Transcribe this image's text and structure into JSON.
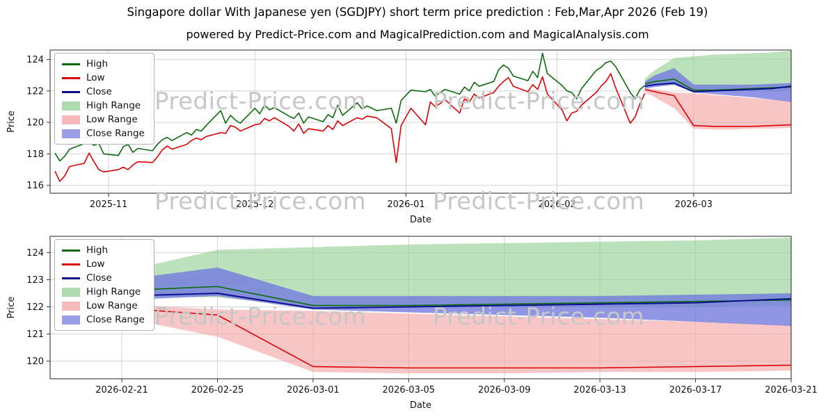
{
  "page": {
    "title": "Singapore dollar With Japanese yen (SGDJPY) short term price prediction : Feb,Mar,Apr 2026 (Feb 19)",
    "subtitle": "powered by Predict-Price.com and MagicalPrediction.com and MagicalAnalysis.com"
  },
  "watermark": "Predict-Price.com",
  "axes": {
    "x_label": "Date",
    "y_label": "Price"
  },
  "legend": {
    "items": [
      {
        "label": "High"
      },
      {
        "label": "Low"
      },
      {
        "label": "Close"
      },
      {
        "label": "High Range"
      },
      {
        "label": "Low Range"
      },
      {
        "label": "Close Range"
      }
    ]
  },
  "colors": {
    "high_line": "#0a6b0a",
    "low_line": "#dd0000",
    "close_line": "#0b0b8f",
    "high_range": "#8fce8f",
    "low_range": "#f4a0a0",
    "close_range": "#7179de",
    "grid": "#d2d2d2",
    "watermark": "#c7c7c7"
  },
  "chart_data": [
    {
      "name": "historical-and-forecast",
      "type": "line",
      "title": "Singapore dollar With Japanese yen (SGDJPY) short term price prediction : Feb,Mar,Apr 2026 (Feb 19)",
      "subtitle": "powered by Predict-Price.com and MagicalPrediction.com and MagicalAnalysis.com",
      "xlabel": "Date",
      "ylabel": "Price",
      "grid": true,
      "legend_position": "upper left",
      "ylim": [
        115.5,
        124.6
      ],
      "yticks": [
        116,
        118,
        120,
        122,
        124
      ],
      "x_range": [
        "2025-10-20",
        "2026-03-21"
      ],
      "xticks": [
        {
          "date": "2025-11-01",
          "label": "2025-11"
        },
        {
          "date": "2025-12-01",
          "label": "2025-12"
        },
        {
          "date": "2026-01-01",
          "label": "2026-01"
        },
        {
          "date": "2026-02-01",
          "label": "2026-02"
        },
        {
          "date": "2026-03-01",
          "label": "2026-03"
        }
      ],
      "historical": {
        "dates": [
          "2025-10-21",
          "2025-10-22",
          "2025-10-23",
          "2025-10-24",
          "2025-10-27",
          "2025-10-28",
          "2025-10-29",
          "2025-10-30",
          "2025-10-31",
          "2025-11-03",
          "2025-11-04",
          "2025-11-05",
          "2025-11-06",
          "2025-11-07",
          "2025-11-10",
          "2025-11-11",
          "2025-11-12",
          "2025-11-13",
          "2025-11-14",
          "2025-11-17",
          "2025-11-18",
          "2025-11-19",
          "2025-11-20",
          "2025-11-21",
          "2025-11-24",
          "2025-11-25",
          "2025-11-26",
          "2025-11-27",
          "2025-11-28",
          "2025-12-01",
          "2025-12-02",
          "2025-12-03",
          "2025-12-04",
          "2025-12-05",
          "2025-12-08",
          "2025-12-09",
          "2025-12-10",
          "2025-12-11",
          "2025-12-12",
          "2025-12-15",
          "2025-12-16",
          "2025-12-17",
          "2025-12-18",
          "2025-12-19",
          "2025-12-22",
          "2025-12-23",
          "2025-12-24",
          "2025-12-26",
          "2025-12-29",
          "2025-12-30",
          "2025-12-31",
          "2026-01-02",
          "2026-01-05",
          "2026-01-06",
          "2026-01-07",
          "2026-01-08",
          "2026-01-09",
          "2026-01-12",
          "2026-01-13",
          "2026-01-14",
          "2026-01-15",
          "2026-01-16",
          "2026-01-19",
          "2026-01-20",
          "2026-01-21",
          "2026-01-22",
          "2026-01-23",
          "2026-01-26",
          "2026-01-27",
          "2026-01-28",
          "2026-01-29",
          "2026-01-30",
          "2026-02-02",
          "2026-02-03",
          "2026-02-04",
          "2026-02-05",
          "2026-02-06",
          "2026-02-09",
          "2026-02-10",
          "2026-02-11",
          "2026-02-12",
          "2026-02-13",
          "2026-02-16",
          "2026-02-17",
          "2026-02-18",
          "2026-02-19"
        ],
        "high": [
          118.05,
          117.55,
          117.85,
          118.3,
          118.65,
          118.7,
          118.55,
          118.65,
          118.0,
          117.9,
          118.45,
          118.6,
          118.1,
          118.35,
          118.2,
          118.6,
          118.9,
          119.05,
          118.85,
          119.35,
          119.2,
          119.55,
          119.45,
          119.8,
          120.75,
          119.95,
          120.45,
          120.15,
          119.95,
          120.9,
          120.55,
          121.1,
          120.8,
          120.95,
          120.4,
          120.25,
          120.6,
          119.95,
          120.35,
          120.05,
          120.5,
          120.3,
          121.1,
          120.45,
          121.25,
          120.85,
          121.05,
          120.75,
          120.9,
          119.95,
          121.4,
          122.05,
          121.95,
          122.1,
          121.65,
          121.9,
          122.1,
          121.8,
          122.25,
          122.0,
          122.55,
          122.3,
          122.6,
          123.35,
          123.65,
          123.45,
          122.95,
          122.65,
          123.25,
          122.85,
          124.4,
          123.1,
          122.35,
          122.0,
          121.9,
          121.5,
          122.15,
          123.3,
          123.5,
          123.8,
          123.9,
          123.55,
          121.9,
          121.5,
          122.1,
          122.35
        ],
        "low": [
          116.9,
          116.25,
          116.6,
          117.2,
          117.4,
          118.05,
          117.5,
          117.0,
          116.85,
          117.0,
          117.15,
          117.0,
          117.3,
          117.5,
          117.45,
          117.8,
          118.25,
          118.5,
          118.3,
          118.6,
          118.85,
          119.0,
          118.9,
          119.1,
          119.35,
          119.3,
          119.8,
          119.7,
          119.45,
          119.85,
          119.9,
          120.25,
          120.1,
          120.3,
          119.75,
          119.45,
          119.9,
          119.3,
          119.6,
          119.45,
          119.8,
          119.55,
          120.1,
          119.8,
          120.3,
          120.2,
          120.4,
          120.3,
          119.6,
          117.45,
          119.8,
          120.9,
          119.85,
          121.3,
          121.0,
          121.2,
          121.45,
          120.6,
          121.5,
          121.3,
          121.8,
          121.55,
          121.9,
          122.3,
          122.6,
          122.85,
          122.3,
          121.95,
          122.4,
          122.1,
          122.9,
          121.8,
          120.8,
          120.1,
          120.6,
          120.7,
          121.1,
          121.9,
          122.3,
          122.6,
          123.1,
          122.2,
          119.95,
          120.35,
          121.2,
          121.85
        ]
      },
      "forecast": {
        "dates": [
          "2026-02-19",
          "2026-02-21",
          "2026-02-25",
          "2026-03-01",
          "2026-03-05",
          "2026-03-09",
          "2026-03-13",
          "2026-03-17",
          "2026-03-21"
        ],
        "high_line": [
          122.45,
          122.6,
          122.75,
          122.05,
          122.05,
          122.1,
          122.15,
          122.2,
          122.25
        ],
        "low_line": [
          122.1,
          121.95,
          121.7,
          119.8,
          119.75,
          119.75,
          119.75,
          119.8,
          119.85
        ],
        "close_line": [
          122.3,
          122.4,
          122.5,
          121.95,
          122.0,
          122.05,
          122.1,
          122.15,
          122.3
        ],
        "high_range_upper": [
          122.8,
          123.3,
          124.1,
          124.2,
          124.3,
          124.35,
          124.4,
          124.45,
          124.55
        ],
        "high_range_lower": [
          122.35,
          122.4,
          122.35,
          122.0,
          122.0,
          122.0,
          122.0,
          122.0,
          122.05
        ],
        "close_range_upper": [
          122.6,
          123.0,
          123.45,
          122.4,
          122.4,
          122.4,
          122.4,
          122.45,
          122.5
        ],
        "close_range_lower": [
          122.15,
          122.25,
          122.4,
          121.9,
          121.8,
          121.7,
          121.6,
          121.45,
          121.3
        ],
        "low_range_upper": [
          122.2,
          122.1,
          121.9,
          121.85,
          121.75,
          121.65,
          121.55,
          121.45,
          121.35
        ],
        "low_range_lower": [
          121.95,
          121.6,
          120.9,
          119.6,
          119.55,
          119.55,
          119.6,
          119.6,
          119.65
        ]
      }
    },
    {
      "name": "forecast-detail",
      "type": "line",
      "title": "",
      "xlabel": "Date",
      "ylabel": "Price",
      "grid": true,
      "legend_position": "upper left",
      "ylim": [
        119.35,
        124.6
      ],
      "yticks": [
        120,
        121,
        122,
        123,
        124
      ],
      "x_range": [
        "2026-02-18",
        "2026-03-21"
      ],
      "xticks": [
        {
          "date": "2026-02-21",
          "label": "2026-02-21"
        },
        {
          "date": "2026-02-25",
          "label": "2026-02-25"
        },
        {
          "date": "2026-03-01",
          "label": "2026-03-01"
        },
        {
          "date": "2026-03-05",
          "label": "2026-03-05"
        },
        {
          "date": "2026-03-09",
          "label": "2026-03-09"
        },
        {
          "date": "2026-03-13",
          "label": "2026-03-13"
        },
        {
          "date": "2026-03-17",
          "label": "2026-03-17"
        },
        {
          "date": "2026-03-21",
          "label": "2026-03-21"
        }
      ],
      "forecast": {
        "dates": [
          "2026-02-19",
          "2026-02-21",
          "2026-02-25",
          "2026-03-01",
          "2026-03-05",
          "2026-03-09",
          "2026-03-13",
          "2026-03-17",
          "2026-03-21"
        ],
        "high_line": [
          122.45,
          122.6,
          122.75,
          122.05,
          122.05,
          122.1,
          122.15,
          122.2,
          122.25
        ],
        "low_line": [
          122.1,
          121.95,
          121.7,
          119.8,
          119.75,
          119.75,
          119.75,
          119.8,
          119.85
        ],
        "close_line": [
          122.3,
          122.4,
          122.5,
          121.95,
          122.0,
          122.05,
          122.1,
          122.15,
          122.3
        ],
        "high_range_upper": [
          122.8,
          123.3,
          124.1,
          124.2,
          124.3,
          124.35,
          124.4,
          124.45,
          124.55
        ],
        "high_range_lower": [
          122.35,
          122.4,
          122.35,
          122.0,
          122.0,
          122.0,
          122.0,
          122.0,
          122.05
        ],
        "close_range_upper": [
          122.6,
          123.0,
          123.45,
          122.4,
          122.4,
          122.4,
          122.4,
          122.45,
          122.5
        ],
        "close_range_lower": [
          122.15,
          122.25,
          122.4,
          121.9,
          121.8,
          121.7,
          121.6,
          121.45,
          121.3
        ],
        "low_range_upper": [
          122.2,
          122.1,
          121.9,
          121.85,
          121.75,
          121.65,
          121.55,
          121.45,
          121.35
        ],
        "low_range_lower": [
          121.95,
          121.6,
          120.9,
          119.6,
          119.55,
          119.55,
          119.6,
          119.6,
          119.65
        ]
      }
    }
  ]
}
